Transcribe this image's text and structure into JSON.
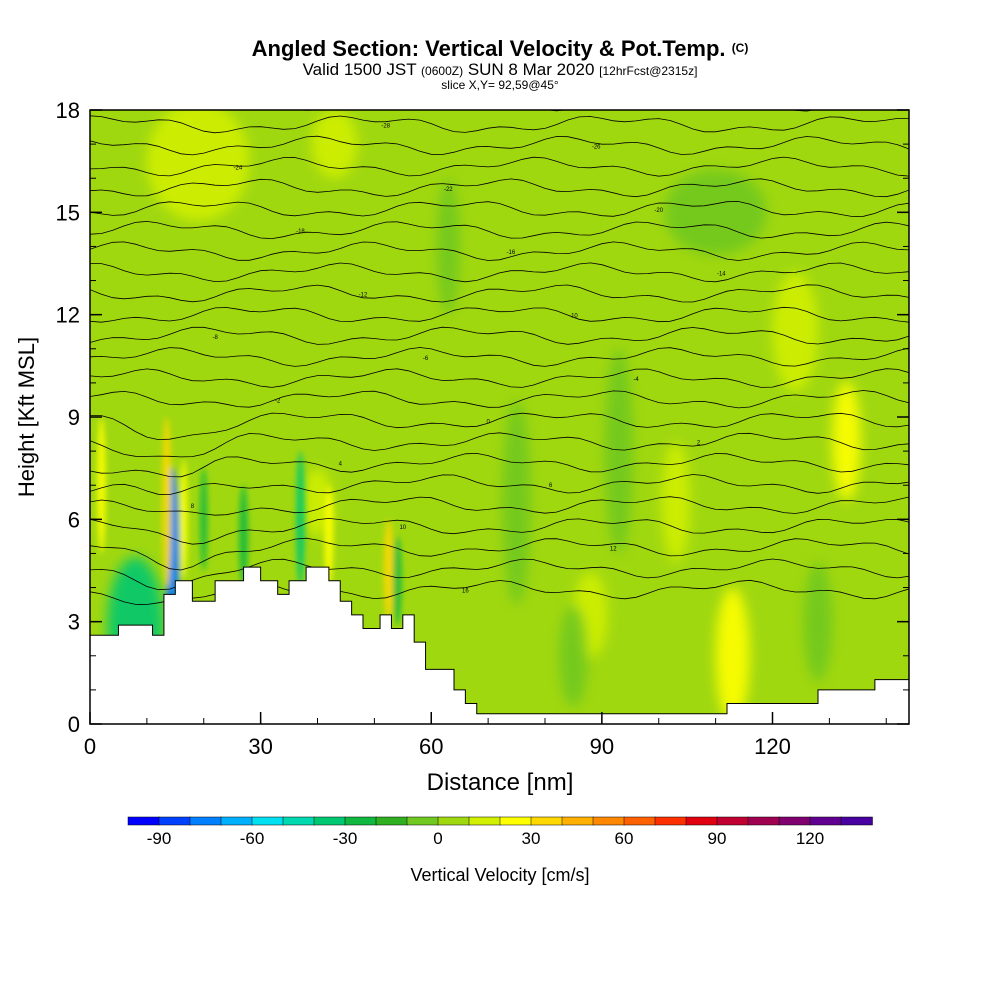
{
  "header": {
    "title": "Angled Section: Vertical Velocity & Pot.Temp.",
    "title_suffix": "(C)",
    "valid_prefix": "Valid 1500 JST",
    "valid_zulu": "(0600Z)",
    "valid_date": "SUN 8 Mar 2020",
    "forecast": "[12hrFcst@2315z]",
    "slice": "slice X,Y= 92,59@45°"
  },
  "chart_data": {
    "type": "heatmap",
    "xlabel": "Distance [nm]",
    "ylabel": "Height [Kft MSL]",
    "xlim": [
      0,
      144
    ],
    "ylim": [
      0,
      18
    ],
    "xticks": [
      0,
      30,
      60,
      90,
      120
    ],
    "yticks": [
      0,
      3,
      6,
      9,
      12,
      15,
      18
    ],
    "colorbar": {
      "label": "Vertical Velocity [cm/s]",
      "ticks": [
        -90,
        -60,
        -30,
        0,
        30,
        60,
        90,
        120
      ],
      "min": -100,
      "max": 140,
      "step": 10,
      "colors": [
        "#0000ff",
        "#0040ff",
        "#0080ff",
        "#00b0ff",
        "#00e0f0",
        "#00d8b0",
        "#00c870",
        "#10b840",
        "#30b020",
        "#70c820",
        "#a0d810",
        "#d0f000",
        "#ffff00",
        "#ffd800",
        "#ffb000",
        "#ff8800",
        "#ff6000",
        "#ff3000",
        "#e00010",
        "#c00030",
        "#a00050",
        "#800070",
        "#600090",
        "#4800a0"
      ]
    },
    "terrain_profile": [
      [
        0,
        2.6
      ],
      [
        5,
        2.6
      ],
      [
        5,
        2.9
      ],
      [
        11,
        2.9
      ],
      [
        11,
        2.6
      ],
      [
        13,
        2.6
      ],
      [
        13,
        3.8
      ],
      [
        15,
        3.8
      ],
      [
        15,
        4.2
      ],
      [
        18,
        4.2
      ],
      [
        18,
        3.6
      ],
      [
        22,
        3.6
      ],
      [
        22,
        4.2
      ],
      [
        27,
        4.2
      ],
      [
        27,
        4.6
      ],
      [
        30,
        4.6
      ],
      [
        30,
        4.2
      ],
      [
        33,
        4.2
      ],
      [
        33,
        3.8
      ],
      [
        35,
        3.8
      ],
      [
        35,
        4.2
      ],
      [
        38,
        4.2
      ],
      [
        38,
        4.6
      ],
      [
        42,
        4.6
      ],
      [
        42,
        4.2
      ],
      [
        44,
        4.2
      ],
      [
        44,
        3.6
      ],
      [
        46,
        3.6
      ],
      [
        46,
        3.2
      ],
      [
        48,
        3.2
      ],
      [
        48,
        2.8
      ],
      [
        51,
        2.8
      ],
      [
        51,
        3.2
      ],
      [
        53,
        3.2
      ],
      [
        53,
        2.8
      ],
      [
        55,
        2.8
      ],
      [
        55,
        3.2
      ],
      [
        57,
        3.2
      ],
      [
        57,
        2.4
      ],
      [
        59,
        2.4
      ],
      [
        59,
        1.6
      ],
      [
        64,
        1.6
      ],
      [
        64,
        1.0
      ],
      [
        66,
        1.0
      ],
      [
        66,
        0.6
      ],
      [
        68,
        0.6
      ],
      [
        68,
        0.3
      ],
      [
        112,
        0.3
      ],
      [
        112,
        0.6
      ],
      [
        128,
        0.6
      ],
      [
        128,
        1.0
      ],
      [
        138,
        1.0
      ],
      [
        138,
        1.3
      ],
      [
        144,
        1.3
      ]
    ],
    "isentrope_labels": [
      "-30",
      "-28",
      "-26",
      "-24",
      "-22",
      "-20",
      "-18",
      "-16",
      "-14",
      "-12",
      "-10",
      "-8",
      "-6",
      "-4",
      "-2",
      "0",
      "2",
      "4",
      "6",
      "8",
      "10",
      "12",
      "14",
      "16"
    ],
    "velocity_features": [
      {
        "x": 8,
        "y": 2.9,
        "width": 10,
        "height": 4.0,
        "value": -40
      },
      {
        "x": 14.5,
        "y": 5.0,
        "width": 2.5,
        "height": 5.0,
        "value": -75
      },
      {
        "x": 13.5,
        "y": 6.5,
        "width": 1.6,
        "height": 5.0,
        "value": 30
      },
      {
        "x": 16.5,
        "y": 6.0,
        "width": 1.3,
        "height": 3.5,
        "value": 20
      },
      {
        "x": 20,
        "y": 6.0,
        "width": 1.2,
        "height": 3.0,
        "value": -30
      },
      {
        "x": 27,
        "y": 5.5,
        "width": 1.5,
        "height": 3.0,
        "value": -30
      },
      {
        "x": 37,
        "y": 6.0,
        "width": 1.5,
        "height": 4.0,
        "value": -40
      },
      {
        "x": 42,
        "y": 5.5,
        "width": 1.6,
        "height": 3.0,
        "value": 20
      },
      {
        "x": 52.5,
        "y": 4.5,
        "width": 1.6,
        "height": 3.0,
        "value": 30
      },
      {
        "x": 54,
        "y": 4.2,
        "width": 1.5,
        "height": 2.6,
        "value": -30
      },
      {
        "x": 2,
        "y": 7.0,
        "width": 1.5,
        "height": 4.0,
        "value": 20
      },
      {
        "x": 19,
        "y": 16.5,
        "width": 18,
        "height": 3.5,
        "value": 10
      },
      {
        "x": 43,
        "y": 17.0,
        "width": 8,
        "height": 2.0,
        "value": 10
      },
      {
        "x": 133,
        "y": 8.3,
        "width": 5,
        "height": 3.5,
        "value": 20
      },
      {
        "x": 113,
        "y": 2.0,
        "width": 6,
        "height": 4.0,
        "value": 20
      },
      {
        "x": 88,
        "y": 3.2,
        "width": 6,
        "height": 2.5,
        "value": 10
      },
      {
        "x": 103,
        "y": 6.5,
        "width": 5,
        "height": 3.5,
        "value": 10
      },
      {
        "x": 40,
        "y": 6.5,
        "width": 5,
        "height": 2.0,
        "value": 10
      },
      {
        "x": 124,
        "y": 11.5,
        "width": 8,
        "height": 3.5,
        "value": 10
      },
      {
        "x": 110,
        "y": 15.0,
        "width": 18,
        "height": 2.5,
        "value": -5
      },
      {
        "x": 93,
        "y": 8.0,
        "width": 5,
        "height": 6.0,
        "value": -5
      },
      {
        "x": 75,
        "y": 6.5,
        "width": 5,
        "height": 6.0,
        "value": -5
      },
      {
        "x": 63,
        "y": 14.0,
        "width": 4,
        "height": 4.0,
        "value": -5
      },
      {
        "x": 85,
        "y": 2.0,
        "width": 5,
        "height": 3.0,
        "value": -5
      },
      {
        "x": 128,
        "y": 3.0,
        "width": 5,
        "height": 3.5,
        "value": -5
      }
    ]
  }
}
